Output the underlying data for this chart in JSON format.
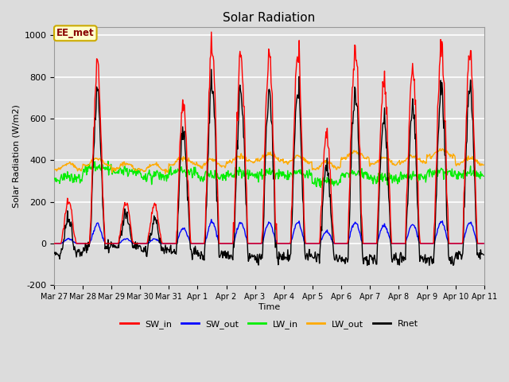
{
  "title": "Solar Radiation",
  "ylabel": "Solar Radiation (W/m2)",
  "xlabel": "Time",
  "ylim": [
    -200,
    1040
  ],
  "xlim": [
    0,
    360
  ],
  "background_color": "#dcdcdc",
  "plot_bg_color": "#dcdcdc",
  "annotation_text": "EE_met",
  "annotation_bg": "#ffffcc",
  "annotation_border": "#ccaa00",
  "annotation_text_color": "#880000",
  "grid_color": "white",
  "xtick_labels": [
    "Mar 27",
    "Mar 28",
    "Mar 29",
    "Mar 30",
    "Mar 31",
    "Apr 1",
    "Apr 2",
    "Apr 3",
    "Apr 4",
    "Apr 5",
    "Apr 6",
    "Apr 7",
    "Apr 8",
    "Apr 9",
    "Apr 10",
    "Apr 11"
  ],
  "xtick_positions": [
    0,
    24,
    48,
    72,
    96,
    120,
    144,
    168,
    192,
    216,
    240,
    264,
    288,
    312,
    336,
    360
  ],
  "ytick_labels": [
    "-200",
    "0",
    "200",
    "400",
    "600",
    "800",
    "1000"
  ],
  "ytick_positions": [
    -200,
    0,
    200,
    400,
    600,
    800,
    1000
  ],
  "sw_in_peaks": [
    200,
    860,
    200,
    180,
    660,
    950,
    900,
    900,
    900,
    530,
    940,
    780,
    840,
    960,
    930,
    920
  ],
  "series": {
    "SW_in": {
      "color": "#ff0000",
      "lw": 1.0
    },
    "SW_out": {
      "color": "#0000ff",
      "lw": 1.0
    },
    "LW_in": {
      "color": "#00ee00",
      "lw": 1.0
    },
    "LW_out": {
      "color": "#ffaa00",
      "lw": 1.0
    },
    "Rnet": {
      "color": "#000000",
      "lw": 1.0
    }
  },
  "legend_labels": [
    "SW_in",
    "SW_out",
    "LW_in",
    "LW_out",
    "Rnet"
  ],
  "legend_colors": [
    "#ff0000",
    "#0000ff",
    "#00ee00",
    "#ffaa00",
    "#000000"
  ]
}
